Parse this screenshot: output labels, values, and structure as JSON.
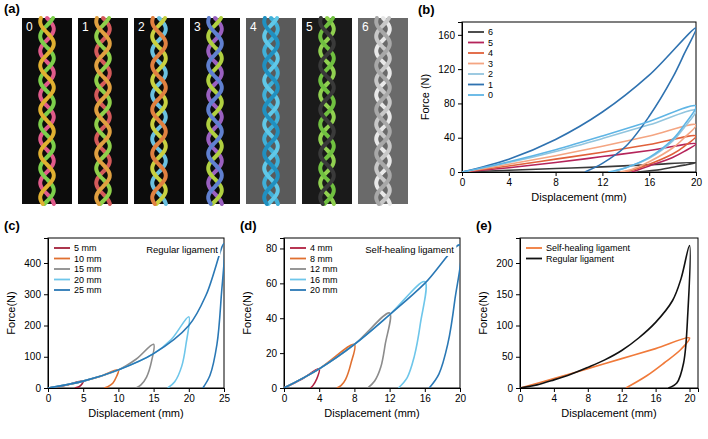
{
  "image_panel": {
    "panel_label": "(a)",
    "labels": [
      "0",
      "1",
      "2",
      "3",
      "4",
      "5",
      "6"
    ]
  },
  "chart_data": [
    {
      "type": "line",
      "panel_label": "(b)",
      "x_label": "Displacement (mm)",
      "y_label": "Force (N)",
      "xlim": [
        0,
        20
      ],
      "xticks": [
        0,
        4,
        8,
        12,
        16,
        20
      ],
      "ylim": [
        0,
        175
      ],
      "yticks": [
        0,
        40,
        80,
        120,
        160
      ],
      "legend": "upper left",
      "series": [
        {
          "name": "6",
          "color": "#3a3a3a",
          "x": [
            0,
            4,
            8,
            12,
            16,
            20,
            19,
            18,
            17,
            15
          ],
          "values": [
            0,
            2,
            4,
            6,
            8.5,
            11,
            8,
            5.5,
            3,
            0
          ]
        },
        {
          "name": "5",
          "color": "#b5245a",
          "x": [
            0,
            4,
            8,
            12,
            16,
            20,
            19,
            18,
            16,
            14.5
          ],
          "values": [
            0,
            5,
            11,
            18,
            25,
            33,
            24,
            17,
            7,
            0
          ]
        },
        {
          "name": "4",
          "color": "#e0603a",
          "x": [
            0,
            4,
            8,
            12,
            16,
            20,
            19,
            18,
            16,
            14.5,
            13.8
          ],
          "values": [
            0,
            7,
            15,
            23,
            32,
            42,
            30,
            21,
            9,
            2,
            0
          ]
        },
        {
          "name": "3",
          "color": "#f4a582",
          "x": [
            0,
            4,
            8,
            12,
            16,
            20,
            19,
            18,
            16,
            14.5,
            13.5
          ],
          "values": [
            0,
            9,
            19,
            30,
            42,
            55,
            40,
            28,
            12,
            3,
            0
          ]
        },
        {
          "name": "2",
          "color": "#92c5de",
          "x": [
            0,
            4,
            8,
            12,
            16,
            20,
            19,
            18,
            16,
            14,
            12.8
          ],
          "values": [
            0,
            11,
            24,
            39,
            55,
            72,
            52,
            36,
            16,
            5,
            0
          ]
        },
        {
          "name": "1",
          "color": "#2f72b0",
          "x": [
            0,
            4,
            8,
            12,
            16,
            20,
            19,
            18,
            16,
            14,
            12,
            10.5
          ],
          "values": [
            0,
            15,
            38,
            70,
            113,
            168,
            138,
            110,
            65,
            30,
            10,
            0
          ]
        },
        {
          "name": "0",
          "color": "#5fb5e5",
          "x": [
            0,
            4,
            8,
            12,
            16,
            20,
            19,
            18,
            16,
            14,
            12.5
          ],
          "values": [
            0,
            12,
            26,
            42,
            59,
            77,
            55,
            38,
            17,
            5,
            0
          ]
        }
      ]
    },
    {
      "type": "line",
      "panel_label": "(c)",
      "x_label": "Displacement (mm)",
      "y_label": "Force(N)",
      "annotation": "Regular ligament",
      "xlim": [
        0,
        25
      ],
      "xticks": [
        0,
        5,
        10,
        15,
        20,
        25
      ],
      "ylim": [
        0,
        480
      ],
      "yticks": [
        0,
        100,
        200,
        300,
        400
      ],
      "legend": "upper left",
      "series": [
        {
          "name": "5 mm",
          "color": "#a3203a",
          "x": [
            0,
            2.5,
            5,
            4.8,
            4.4,
            3.8
          ],
          "values": [
            0,
            9,
            22,
            12,
            4,
            0
          ]
        },
        {
          "name": "10 mm",
          "color": "#e07030",
          "x": [
            0,
            2.5,
            5,
            7.5,
            10,
            9.7,
            9.2,
            8.5,
            8
          ],
          "values": [
            0,
            9,
            22,
            38,
            58,
            35,
            15,
            4,
            0
          ]
        },
        {
          "name": "15 mm",
          "color": "#8c8c8c",
          "x": [
            0,
            5,
            10,
            12.5,
            15,
            14.7,
            14,
            13.2,
            12.5
          ],
          "values": [
            0,
            22,
            58,
            92,
            140,
            85,
            35,
            10,
            0
          ]
        },
        {
          "name": "20 mm",
          "color": "#6ec6ea",
          "x": [
            0,
            5,
            10,
            15,
            17.5,
            20,
            19.6,
            19,
            18,
            17
          ],
          "values": [
            0,
            22,
            58,
            110,
            155,
            228,
            140,
            70,
            20,
            0
          ]
        },
        {
          "name": "25 mm",
          "color": "#2a78b5",
          "x": [
            0,
            5,
            10,
            15,
            20,
            22.5,
            25,
            24.6,
            24,
            23,
            22
          ],
          "values": [
            0,
            22,
            58,
            110,
            200,
            300,
            462,
            290,
            140,
            40,
            0
          ]
        }
      ]
    },
    {
      "type": "line",
      "panel_label": "(d)",
      "x_label": "Displacement (mm)",
      "y_label": "Force(N)",
      "annotation": "Self-healing ligament",
      "xlim": [
        0,
        20
      ],
      "xticks": [
        0,
        4,
        8,
        12,
        16,
        20
      ],
      "ylim": [
        0,
        86
      ],
      "yticks": [
        0,
        20,
        40,
        60,
        80
      ],
      "legend": "upper left",
      "series": [
        {
          "name": "4 mm",
          "color": "#b02040",
          "x": [
            0,
            2,
            4,
            3.7,
            3.3,
            3
          ],
          "values": [
            0,
            5,
            11,
            5,
            1.5,
            0
          ]
        },
        {
          "name": "8 mm",
          "color": "#e07030",
          "x": [
            0,
            4,
            8,
            7.6,
            7,
            6.5,
            6
          ],
          "values": [
            0,
            11,
            25,
            14,
            5,
            1.5,
            0
          ]
        },
        {
          "name": "12 mm",
          "color": "#8c8c8c",
          "x": [
            0,
            4,
            8,
            12,
            11.5,
            11,
            10.3,
            9.5
          ],
          "values": [
            0,
            11,
            25,
            43,
            25,
            12,
            4,
            0
          ]
        },
        {
          "name": "16 mm",
          "color": "#6ec6ea",
          "x": [
            0,
            4,
            8,
            12,
            16,
            15.5,
            14.8,
            14,
            13
          ],
          "values": [
            0,
            11,
            25,
            42,
            61,
            37,
            18,
            6,
            0
          ]
        },
        {
          "name": "20 mm",
          "color": "#2a78b5",
          "x": [
            0,
            4,
            8,
            12,
            16,
            20,
            19.4,
            18.6,
            17.6,
            16.5
          ],
          "values": [
            0,
            11,
            25,
            42,
            60,
            82,
            50,
            25,
            8,
            0
          ]
        }
      ]
    },
    {
      "type": "line",
      "panel_label": "(e)",
      "x_label": "Displacement (mm)",
      "y_label": "Force(N)",
      "xlim": [
        0,
        21
      ],
      "xticks": [
        0,
        4,
        8,
        12,
        16,
        20
      ],
      "ylim": [
        0,
        240
      ],
      "yticks": [
        0,
        50,
        100,
        150,
        200
      ],
      "legend": "upper left",
      "series": [
        {
          "name": "Self-healing ligament",
          "color": "#f07a3a",
          "x": [
            0,
            4,
            8,
            12,
            16,
            20,
            19,
            17,
            15,
            12.5
          ],
          "values": [
            0,
            15,
            31,
            47,
            63,
            80,
            62,
            40,
            20,
            0
          ]
        },
        {
          "name": "Regular ligament",
          "color": "#111111",
          "x": [
            0,
            2,
            4,
            6,
            8,
            10,
            12,
            14,
            16,
            18,
            19,
            20,
            19.8,
            19.3,
            18.5,
            17.5
          ],
          "values": [
            0,
            5,
            13,
            22,
            33,
            45,
            60,
            80,
            105,
            140,
            175,
            228,
            120,
            40,
            8,
            0
          ]
        }
      ]
    }
  ]
}
